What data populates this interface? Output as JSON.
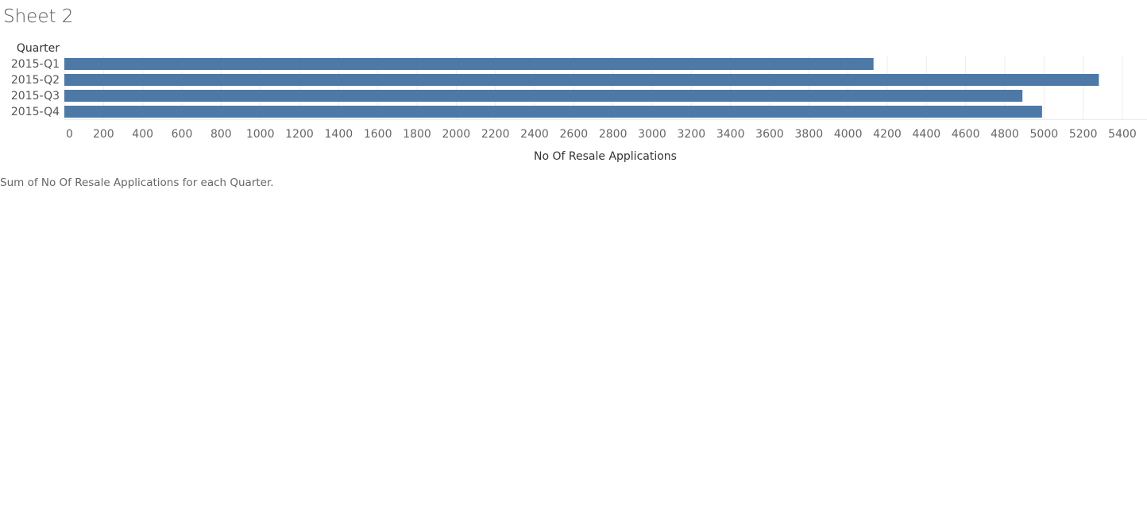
{
  "sheet": {
    "title": "Sheet 2",
    "caption": "Sum of No Of Resale Applications for each Quarter."
  },
  "colors": {
    "bar": "#4e79a7",
    "grid": "#ececec"
  },
  "chart_data": {
    "type": "bar",
    "orientation": "horizontal",
    "row_header": "Quarter",
    "categories": [
      "2015-Q1",
      "2015-Q2",
      "2015-Q3",
      "2015-Q4"
    ],
    "values": [
      4130,
      5280,
      4890,
      4990
    ],
    "xlabel": "No Of Resale Applications",
    "xlim": [
      0,
      5550
    ],
    "xticks": [
      0,
      200,
      400,
      600,
      800,
      1000,
      1200,
      1400,
      1600,
      1800,
      2000,
      2200,
      2400,
      2600,
      2800,
      3000,
      3200,
      3400,
      3600,
      3800,
      4000,
      4200,
      4400,
      4600,
      4800,
      5000,
      5200,
      5400
    ],
    "grid": true,
    "legend": "none"
  }
}
